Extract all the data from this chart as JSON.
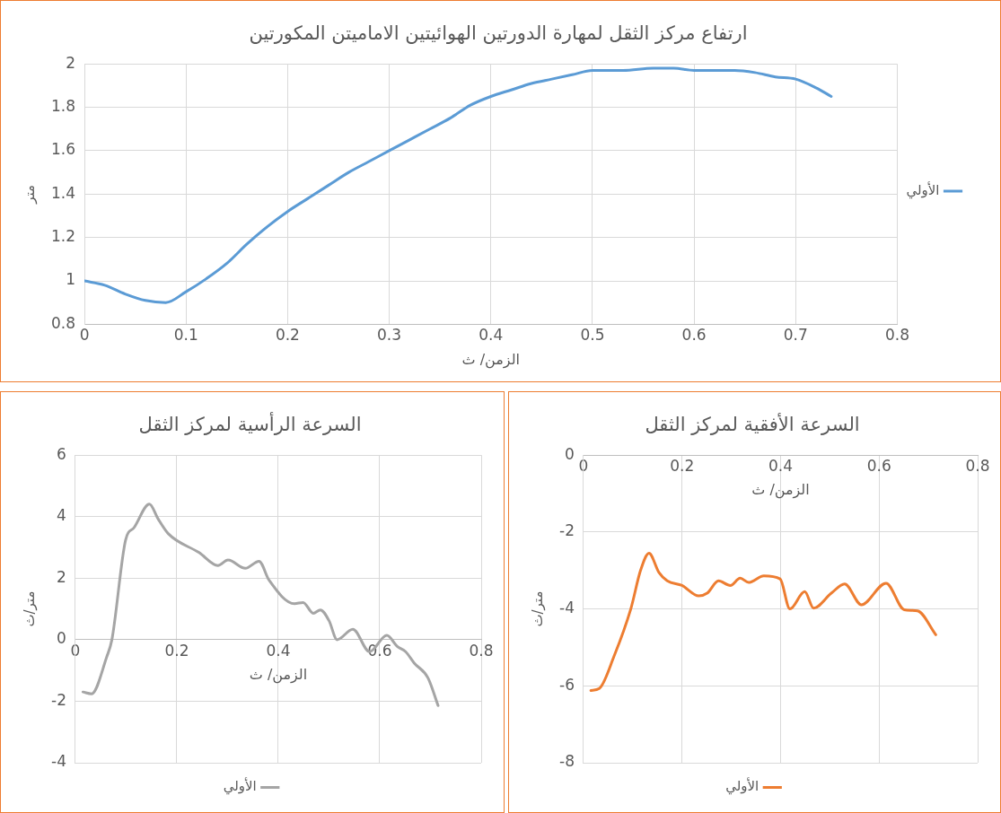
{
  "chart_data": [
    {
      "type": "line",
      "title": "ارتفاع مركز الثقل لمهارة الدورتين الهوائيتين الاماميتن المكورتين",
      "xlabel": "الزمن/ ث",
      "ylabel": "متر",
      "legend": "right",
      "grid": true,
      "marker": "none",
      "line_style": "solid",
      "xlim": [
        0,
        0.8
      ],
      "xticks": [
        0,
        0.1,
        0.2,
        0.3,
        0.4,
        0.5,
        0.6,
        0.7,
        0.8
      ],
      "ylim": [
        0.8,
        2
      ],
      "yticks": [
        0.8,
        1,
        1.2,
        1.4,
        1.6,
        1.8,
        2
      ],
      "series": [
        {
          "name": "الأولي",
          "color": "#5b9bd5",
          "x": [
            0,
            0.02,
            0.04,
            0.06,
            0.08,
            0.1,
            0.12,
            0.14,
            0.16,
            0.18,
            0.2,
            0.22,
            0.24,
            0.26,
            0.28,
            0.3,
            0.32,
            0.34,
            0.36,
            0.38,
            0.4,
            0.42,
            0.44,
            0.46,
            0.48,
            0.5,
            0.53,
            0.56,
            0.58,
            0.6,
            0.62,
            0.64,
            0.66,
            0.68,
            0.7,
            0.72,
            0.735
          ],
          "values": [
            1.0,
            0.98,
            0.94,
            0.91,
            0.9,
            0.95,
            1.01,
            1.08,
            1.17,
            1.25,
            1.32,
            1.38,
            1.44,
            1.5,
            1.55,
            1.6,
            1.65,
            1.7,
            1.75,
            1.81,
            1.85,
            1.88,
            1.91,
            1.93,
            1.95,
            1.97,
            1.97,
            1.98,
            1.98,
            1.97,
            1.97,
            1.97,
            1.96,
            1.94,
            1.93,
            1.89,
            1.85
          ]
        }
      ]
    },
    {
      "type": "line",
      "title": "السرعة الرأسية لمركز الثقل",
      "xlabel": "الزمن/ ث",
      "ylabel": "متر/ث",
      "legend": "bottom",
      "grid": true,
      "marker": "none",
      "line_style": "solid",
      "xlim": [
        0,
        0.8
      ],
      "xticks": [
        0,
        0.2,
        0.4,
        0.6,
        0.8
      ],
      "ylim": [
        -4,
        6
      ],
      "yticks": [
        -4,
        -2,
        0,
        2,
        4,
        6
      ],
      "series": [
        {
          "name": "الأولي",
          "color": "#a5a5a5",
          "x": [
            0.015,
            0.032,
            0.062,
            0.072,
            0.099,
            0.116,
            0.146,
            0.163,
            0.183,
            0.244,
            0.281,
            0.301,
            0.335,
            0.362,
            0.382,
            0.432,
            0.449,
            0.469,
            0.483,
            0.5,
            0.516,
            0.547,
            0.58,
            0.614,
            0.634,
            0.651,
            0.668,
            0.695,
            0.715
          ],
          "values": [
            -1.7,
            -1.76,
            -0.55,
            0,
            3.24,
            3.65,
            4.41,
            3.93,
            3.45,
            2.83,
            2.41,
            2.59,
            2.32,
            2.55,
            1.93,
            1.17,
            1.21,
            0.86,
            0.97,
            0.62,
            0,
            0.34,
            -0.39,
            0.14,
            -0.21,
            -0.39,
            -0.76,
            -1.24,
            -2.14
          ]
        }
      ]
    },
    {
      "type": "line",
      "title": "السرعة الأفقية لمركز الثقل",
      "xlabel": "الزمن/ ث",
      "ylabel": "متر/ث",
      "legend": "bottom",
      "grid": true,
      "marker": "none",
      "line_style": "solid",
      "xlim": [
        0,
        0.8
      ],
      "xticks": [
        0,
        0.2,
        0.4,
        0.6,
        0.8
      ],
      "ylim": [
        -8,
        0
      ],
      "yticks": [
        -8,
        -6,
        -4,
        -2,
        0
      ],
      "series": [
        {
          "name": "الأولي",
          "color": "#ed7d31",
          "x": [
            0.015,
            0.032,
            0.062,
            0.096,
            0.116,
            0.133,
            0.153,
            0.17,
            0.2,
            0.234,
            0.251,
            0.274,
            0.298,
            0.318,
            0.335,
            0.366,
            0.399,
            0.419,
            0.449,
            0.467,
            0.503,
            0.53,
            0.564,
            0.614,
            0.651,
            0.678,
            0.715
          ],
          "values": [
            -6.12,
            -6.07,
            -5.23,
            -4.0,
            -2.99,
            -2.55,
            -3.05,
            -3.27,
            -3.39,
            -3.66,
            -3.59,
            -3.27,
            -3.39,
            -3.2,
            -3.31,
            -3.14,
            -3.22,
            -4.0,
            -3.55,
            -3.98,
            -3.59,
            -3.35,
            -3.89,
            -3.33,
            -4.02,
            -4.05,
            -4.67
          ]
        }
      ]
    }
  ]
}
